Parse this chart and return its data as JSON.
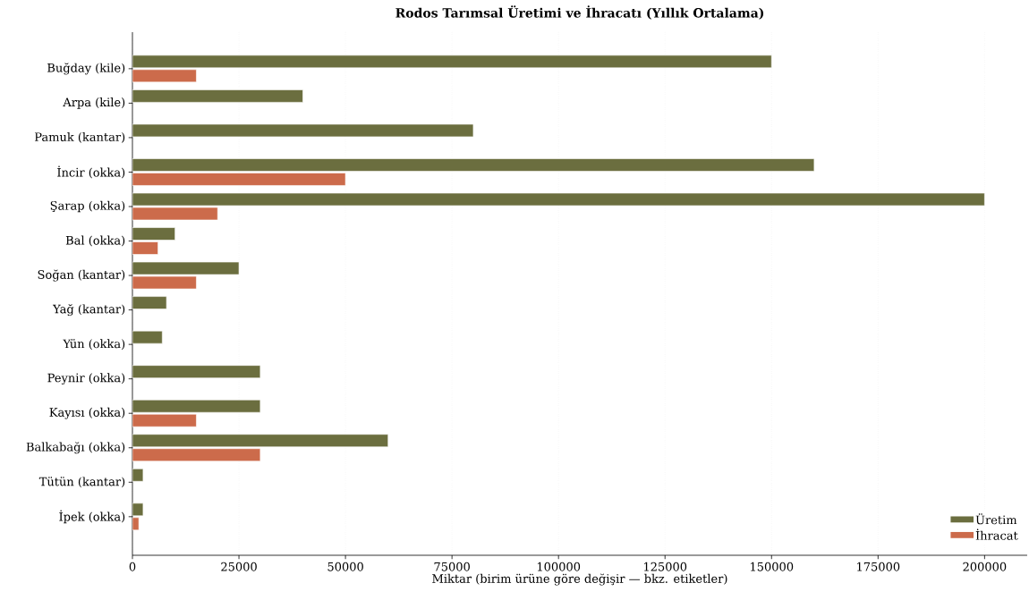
{
  "chart_data": {
    "type": "bar",
    "orientation": "horizontal",
    "title": "Rodos Tarımsal Üretimi ve İhracatı (Yıllık Ortalama)",
    "xlabel": "Miktar (birim ürüne göre değişir — bkz. etiketler)",
    "categories": [
      "Buğday (kile)",
      "Arpa (kile)",
      "Pamuk (kantar)",
      "İncir (okka)",
      "Şarap (okka)",
      "Bal (okka)",
      "Soğan (kantar)",
      "Yağ (kantar)",
      "Yün (okka)",
      "Peynir (okka)",
      "Kayısı (okka)",
      "Balkabağı (okka)",
      "Tütün (kantar)",
      "İpek (okka)"
    ],
    "series": [
      {
        "name": "Üretim",
        "color": "#6b6e3f",
        "values": [
          150000,
          40000,
          80000,
          160000,
          200000,
          10000,
          25000,
          8000,
          7000,
          30000,
          30000,
          60000,
          2500,
          2500
        ]
      },
      {
        "name": "İhracat",
        "color": "#cc6b4b",
        "values": [
          15000,
          null,
          null,
          50000,
          20000,
          6000,
          15000,
          null,
          null,
          null,
          15000,
          30000,
          null,
          1500
        ]
      }
    ],
    "xlim": [
      0,
      210000
    ],
    "xticks": [
      0,
      25000,
      50000,
      75000,
      100000,
      125000,
      150000,
      175000,
      200000
    ],
    "grid": "x",
    "legend": "bottom right"
  }
}
